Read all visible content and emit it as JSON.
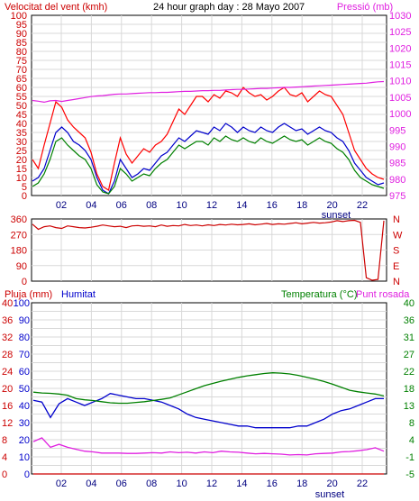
{
  "chart_data": [
    {
      "type": "line",
      "title": "24 hour graph day : 28 Mayo 2007",
      "left_axis_label": "Velocitat del vent (kmh)",
      "right_axis_label": "Pressió (mb)",
      "x_ticks": [
        "02",
        "04",
        "06",
        "08",
        "10",
        "12",
        "14",
        "16",
        "18",
        "20",
        "22"
      ],
      "sunset_label": "sunset",
      "left_ticks": [
        "0",
        "5",
        "10",
        "15",
        "20",
        "25",
        "30",
        "35",
        "40",
        "45",
        "50",
        "55",
        "60",
        "65",
        "70",
        "75",
        "80",
        "85",
        "90",
        "95",
        "100"
      ],
      "right_ticks": [
        "975",
        "980",
        "985",
        "990",
        "995",
        "1000",
        "1005",
        "1010",
        "1015",
        "1020",
        "1025",
        "1030"
      ],
      "ylim_left": [
        0,
        100
      ],
      "ylim_right": [
        975,
        1030
      ],
      "series": [
        {
          "axis": "left",
          "color": "#ff0000",
          "values": [
            20,
            15,
            28,
            40,
            52,
            49,
            42,
            38,
            35,
            32,
            24,
            12,
            5,
            3,
            18,
            32,
            23,
            18,
            22,
            26,
            24,
            28,
            30,
            34,
            41,
            48,
            45,
            50,
            55,
            55,
            52,
            56,
            54,
            58,
            57,
            55,
            60,
            57,
            55,
            56,
            53,
            55,
            58,
            60,
            56,
            55,
            57,
            52,
            55,
            58,
            56,
            55,
            50,
            45,
            35,
            25,
            20,
            15,
            12,
            10,
            9
          ]
        },
        {
          "axis": "left",
          "color": "#0000cc",
          "values": [
            8,
            10,
            15,
            25,
            35,
            38,
            35,
            30,
            28,
            25,
            20,
            10,
            3,
            1,
            8,
            20,
            15,
            10,
            12,
            15,
            14,
            18,
            22,
            24,
            28,
            32,
            30,
            33,
            36,
            35,
            34,
            38,
            36,
            40,
            38,
            35,
            38,
            36,
            35,
            38,
            36,
            35,
            38,
            40,
            38,
            36,
            37,
            34,
            36,
            38,
            36,
            35,
            32,
            30,
            25,
            18,
            14,
            10,
            8,
            6,
            7
          ]
        },
        {
          "axis": "left",
          "color": "#008000",
          "values": [
            5,
            7,
            12,
            20,
            30,
            32,
            28,
            25,
            22,
            20,
            15,
            6,
            2,
            1,
            5,
            15,
            12,
            8,
            10,
            12,
            11,
            15,
            18,
            20,
            24,
            28,
            26,
            28,
            30,
            30,
            28,
            32,
            30,
            33,
            31,
            30,
            32,
            30,
            29,
            32,
            30,
            29,
            31,
            33,
            31,
            30,
            31,
            28,
            30,
            32,
            30,
            29,
            26,
            24,
            20,
            14,
            10,
            8,
            6,
            5,
            4
          ]
        },
        {
          "axis": "right",
          "color": "#e020e0",
          "values": [
            1004,
            1003.8,
            1003.5,
            1003.9,
            1004,
            1003.7,
            1004,
            1004.3,
            1004.6,
            1004.9,
            1005.2,
            1005.4,
            1005.5,
            1005.7,
            1005.9,
            1006,
            1006,
            1006.1,
            1006.2,
            1006.3,
            1006.4,
            1006.4,
            1006.5,
            1006.5,
            1006.6,
            1006.7,
            1006.8,
            1006.8,
            1006.9,
            1007,
            1007,
            1007.1,
            1007.1,
            1007.2,
            1007.3,
            1007.4,
            1007.4,
            1007.5,
            1007.6,
            1007.7,
            1007.7,
            1007.8,
            1007.9,
            1008,
            1008,
            1008.1,
            1008.2,
            1008.3,
            1008.4,
            1008.5,
            1008.6,
            1008.7,
            1008.8,
            1008.9,
            1009,
            1009.1,
            1009.2,
            1009.3,
            1009.5,
            1009.7,
            1009.8
          ]
        }
      ]
    },
    {
      "type": "line",
      "left_ticks": [
        "360",
        "270",
        "180",
        "90",
        "0"
      ],
      "right_ticks": [
        "N",
        "W",
        "S",
        "E",
        "N"
      ],
      "ylim": [
        0,
        360
      ],
      "series": [
        {
          "color": "#cc0000",
          "values": [
            330,
            300,
            315,
            320,
            310,
            305,
            320,
            315,
            310,
            308,
            312,
            318,
            325,
            320,
            315,
            318,
            310,
            320,
            322,
            318,
            320,
            315,
            325,
            318,
            322,
            320,
            328,
            322,
            325,
            320,
            326,
            322,
            328,
            325,
            330,
            326,
            328,
            332,
            326,
            330,
            334,
            328,
            332,
            330,
            334,
            338,
            332,
            336,
            340,
            336,
            338,
            342,
            350,
            345,
            350,
            352,
            340,
            20,
            5,
            10,
            350
          ]
        }
      ]
    },
    {
      "type": "line",
      "left_axis_label": "Pluja (mm)",
      "left2_axis_label": "Humitat",
      "right_axis_label": "Temperatura (°C)",
      "right2_axis_label": "Punt rosada",
      "x_ticks": [
        "02",
        "04",
        "06",
        "08",
        "10",
        "12",
        "14",
        "16",
        "18",
        "20",
        "22"
      ],
      "sunset_label": "sunset",
      "left_rain_ticks": [
        "0",
        "2",
        "4",
        "6",
        "8",
        "10",
        "12",
        "14",
        "16",
        "18",
        "20",
        "22",
        "24",
        "26",
        "28",
        "30",
        "32",
        "34",
        "36",
        "38",
        "40"
      ],
      "left_hum_ticks": [
        "0",
        "5",
        "10",
        "15",
        "20",
        "25",
        "30",
        "35",
        "40",
        "45",
        "50",
        "55",
        "60",
        "65",
        "70",
        "75",
        "80",
        "85",
        "90",
        "95",
        "100"
      ],
      "right_ticks": [
        "-5",
        "-1",
        "4",
        "8",
        "13",
        "18",
        "22",
        "27",
        "31",
        "36",
        "40"
      ],
      "ylim_humidity": [
        0,
        100
      ],
      "ylim_temperature": [
        -5,
        40
      ],
      "series": [
        {
          "axis": "humidity",
          "color": "#0000cc",
          "values": [
            43,
            42,
            33,
            41,
            44,
            42,
            40,
            42,
            44,
            47,
            46,
            45,
            44,
            44,
            43,
            42,
            40,
            38,
            35,
            33,
            32,
            31,
            30,
            29,
            28,
            28,
            27,
            27,
            27,
            27,
            27,
            28,
            28,
            30,
            32,
            35,
            37,
            38,
            40,
            42,
            44,
            44
          ]
        },
        {
          "axis": "temperature",
          "color": "#008000",
          "values": [
            16.5,
            16.3,
            16.2,
            16.0,
            15.7,
            14.8,
            14.5,
            14.3,
            14.0,
            13.7,
            13.6,
            13.6,
            13.8,
            14.0,
            14.3,
            14.6,
            15.0,
            15.8,
            16.6,
            17.4,
            18.2,
            18.8,
            19.4,
            19.9,
            20.4,
            20.8,
            21.1,
            21.4,
            21.6,
            21.5,
            21.3,
            20.9,
            20.4,
            19.9,
            19.3,
            18.6,
            17.8,
            17.0,
            16.6,
            16.3,
            16.0,
            15.5
          ]
        },
        {
          "axis": "temperature",
          "color": "#e020e0",
          "values": [
            3.5,
            4.5,
            2.0,
            2.8,
            2.0,
            1.5,
            1.0,
            0.8,
            0.5,
            0.5,
            0.5,
            0.4,
            0.4,
            0.5,
            0.6,
            0.5,
            0.8,
            0.6,
            0.7,
            0.5,
            0.8,
            0.6,
            1.0,
            0.8,
            0.7,
            0.5,
            0.3,
            0.4,
            0.3,
            0.2,
            0.0,
            0.1,
            0.0,
            0.3,
            0.4,
            0.5,
            0.8,
            0.9,
            1.1,
            1.4,
            1.9,
            1.0
          ]
        },
        {
          "axis": "humidity",
          "color": "#cc0000",
          "values": [
            0,
            0
          ]
        }
      ]
    }
  ]
}
